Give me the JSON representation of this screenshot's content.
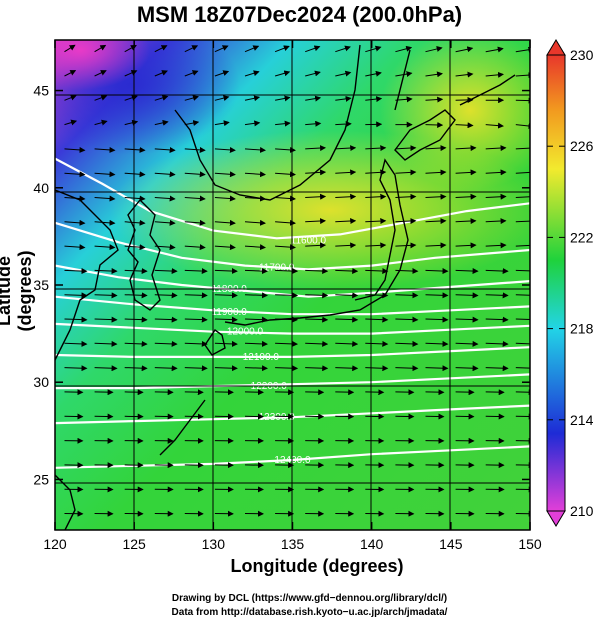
{
  "title": "MSM 18Z07Dec2024 (200.0hPa)",
  "axes": {
    "xlabel": "Longitude (degrees)",
    "ylabel": "Latitude  (degrees)",
    "xticks": [
      "120",
      "125",
      "130",
      "135",
      "140",
      "145",
      "150"
    ],
    "yticks": [
      "25",
      "30",
      "35",
      "40",
      "45"
    ],
    "xlim": [
      120,
      150
    ],
    "ylim": [
      22.4,
      47.6
    ]
  },
  "colorbar": {
    "ticks": [
      "230",
      "226",
      "222",
      "218",
      "214",
      "210"
    ],
    "range": [
      210,
      230
    ],
    "colors": [
      "#e23fd8",
      "#1e2bd6",
      "#22d4e6",
      "#1fd23c",
      "#f2ea2e",
      "#f2991f",
      "#e8372b"
    ]
  },
  "contours": {
    "color": "#ffffff",
    "labels": [
      "11500.0",
      "11600.0",
      "11700.0",
      "11800.0",
      "11900.0",
      "12000.0",
      "12100.0",
      "12200.0",
      "12300.0",
      "12400.0"
    ]
  },
  "credits": {
    "line1": "Drawing by DCL (https://www.gfd−dennou.org/library/dcl/)",
    "line2": "Data from http://database.rish.kyoto−u.ac.jp/arch/jmadata/"
  }
}
